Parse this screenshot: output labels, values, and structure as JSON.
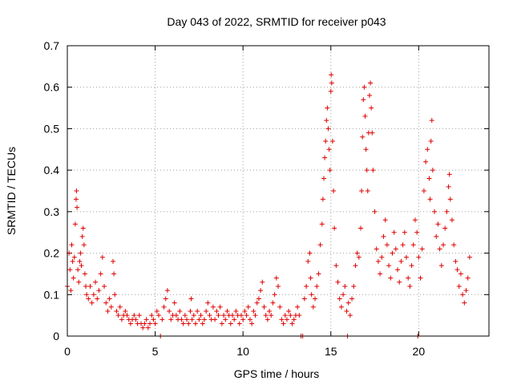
{
  "chart_data": {
    "type": "scatter",
    "title": "Day 043 of 2022, SRMTID for receiver p043",
    "xlabel": "GPS time / hours",
    "ylabel": "SRMTID / TECUs",
    "xlim": [
      0,
      24
    ],
    "ylim": [
      0,
      0.7
    ],
    "xticks": [
      0,
      5,
      10,
      15,
      20
    ],
    "yticks": [
      0,
      0.1,
      0.2,
      0.3,
      0.4,
      0.5,
      0.6,
      0.7
    ],
    "xtick_labels": [
      "0",
      "5",
      "10",
      "15",
      "20"
    ],
    "ytick_labels": [
      "0",
      "0.1",
      "0.2",
      "0.3",
      "0.4",
      "0.5",
      "0.6",
      "0.7"
    ],
    "grid": true,
    "marker": "+",
    "color": "#e00000",
    "series": [
      {
        "name": "SRMTID",
        "points": [
          [
            0.0,
            0.12
          ],
          [
            0.1,
            0.2
          ],
          [
            0.15,
            0.16
          ],
          [
            0.2,
            0.11
          ],
          [
            0.25,
            0.22
          ],
          [
            0.3,
            0.18
          ],
          [
            0.35,
            0.14
          ],
          [
            0.4,
            0.19
          ],
          [
            0.45,
            0.27
          ],
          [
            0.5,
            0.33
          ],
          [
            0.52,
            0.35
          ],
          [
            0.55,
            0.31
          ],
          [
            0.6,
            0.16
          ],
          [
            0.65,
            0.13
          ],
          [
            0.7,
            0.18
          ],
          [
            0.75,
            0.2
          ],
          [
            0.8,
            0.17
          ],
          [
            0.85,
            0.24
          ],
          [
            0.9,
            0.26
          ],
          [
            0.95,
            0.22
          ],
          [
            1.0,
            0.15
          ],
          [
            1.05,
            0.12
          ],
          [
            1.1,
            0.1
          ],
          [
            1.2,
            0.09
          ],
          [
            1.3,
            0.12
          ],
          [
            1.4,
            0.08
          ],
          [
            1.5,
            0.1
          ],
          [
            1.6,
            0.13
          ],
          [
            1.7,
            0.09
          ],
          [
            1.8,
            0.11
          ],
          [
            1.9,
            0.15
          ],
          [
            2.0,
            0.19
          ],
          [
            2.1,
            0.12
          ],
          [
            2.2,
            0.08
          ],
          [
            2.3,
            0.06
          ],
          [
            2.4,
            0.09
          ],
          [
            2.5,
            0.07
          ],
          [
            2.6,
            0.18
          ],
          [
            2.65,
            0.15
          ],
          [
            2.7,
            0.1
          ],
          [
            2.8,
            0.06
          ],
          [
            2.9,
            0.05
          ],
          [
            3.0,
            0.07
          ],
          [
            3.1,
            0.04
          ],
          [
            3.2,
            0.05
          ],
          [
            3.3,
            0.06
          ],
          [
            3.4,
            0.05
          ],
          [
            3.5,
            0.04
          ],
          [
            3.6,
            0.03
          ],
          [
            3.7,
            0.04
          ],
          [
            3.8,
            0.05
          ],
          [
            3.9,
            0.04
          ],
          [
            4.0,
            0.03
          ],
          [
            4.1,
            0.05
          ],
          [
            4.2,
            0.03
          ],
          [
            4.3,
            0.02
          ],
          [
            4.4,
            0.03
          ],
          [
            4.5,
            0.04
          ],
          [
            4.6,
            0.02
          ],
          [
            4.7,
            0.03
          ],
          [
            4.8,
            0.05
          ],
          [
            4.9,
            0.04
          ],
          [
            5.0,
            0.03
          ],
          [
            5.1,
            0.06
          ],
          [
            5.2,
            0.05
          ],
          [
            5.3,
            0.0
          ],
          [
            5.4,
            0.04
          ],
          [
            5.5,
            0.07
          ],
          [
            5.6,
            0.09
          ],
          [
            5.7,
            0.11
          ],
          [
            5.8,
            0.06
          ],
          [
            5.9,
            0.04
          ],
          [
            6.0,
            0.05
          ],
          [
            6.1,
            0.08
          ],
          [
            6.2,
            0.05
          ],
          [
            6.3,
            0.04
          ],
          [
            6.4,
            0.06
          ],
          [
            6.5,
            0.04
          ],
          [
            6.6,
            0.03
          ],
          [
            6.7,
            0.05
          ],
          [
            6.8,
            0.04
          ],
          [
            6.9,
            0.03
          ],
          [
            7.0,
            0.06
          ],
          [
            7.05,
            0.09
          ],
          [
            7.1,
            0.04
          ],
          [
            7.2,
            0.05
          ],
          [
            7.3,
            0.03
          ],
          [
            7.4,
            0.06
          ],
          [
            7.5,
            0.04
          ],
          [
            7.6,
            0.05
          ],
          [
            7.7,
            0.03
          ],
          [
            7.8,
            0.04
          ],
          [
            7.9,
            0.06
          ],
          [
            8.0,
            0.08
          ],
          [
            8.1,
            0.05
          ],
          [
            8.2,
            0.04
          ],
          [
            8.3,
            0.07
          ],
          [
            8.4,
            0.04
          ],
          [
            8.5,
            0.06
          ],
          [
            8.6,
            0.05
          ],
          [
            8.7,
            0.07
          ],
          [
            8.8,
            0.03
          ],
          [
            8.9,
            0.05
          ],
          [
            9.0,
            0.04
          ],
          [
            9.1,
            0.06
          ],
          [
            9.2,
            0.05
          ],
          [
            9.3,
            0.03
          ],
          [
            9.4,
            0.05
          ],
          [
            9.5,
            0.04
          ],
          [
            9.6,
            0.06
          ],
          [
            9.7,
            0.05
          ],
          [
            9.8,
            0.03
          ],
          [
            9.9,
            0.05
          ],
          [
            10.0,
            0.04
          ],
          [
            10.1,
            0.06
          ],
          [
            10.2,
            0.05
          ],
          [
            10.3,
            0.07
          ],
          [
            10.4,
            0.04
          ],
          [
            10.5,
            0.03
          ],
          [
            10.6,
            0.06
          ],
          [
            10.7,
            0.05
          ],
          [
            10.8,
            0.08
          ],
          [
            10.9,
            0.09
          ],
          [
            11.0,
            0.11
          ],
          [
            11.1,
            0.13
          ],
          [
            11.2,
            0.07
          ],
          [
            11.3,
            0.05
          ],
          [
            11.4,
            0.04
          ],
          [
            11.5,
            0.06
          ],
          [
            11.6,
            0.05
          ],
          [
            11.7,
            0.08
          ],
          [
            11.8,
            0.1
          ],
          [
            11.9,
            0.14
          ],
          [
            12.0,
            0.12
          ],
          [
            12.1,
            0.07
          ],
          [
            12.2,
            0.04
          ],
          [
            12.3,
            0.03
          ],
          [
            12.4,
            0.05
          ],
          [
            12.5,
            0.04
          ],
          [
            12.6,
            0.06
          ],
          [
            12.7,
            0.05
          ],
          [
            12.8,
            0.03
          ],
          [
            12.9,
            0.04
          ],
          [
            13.0,
            0.05
          ],
          [
            13.1,
            0.07
          ],
          [
            13.2,
            0.05
          ],
          [
            13.3,
            0.0
          ],
          [
            13.4,
            0.0
          ],
          [
            13.5,
            0.09
          ],
          [
            13.6,
            0.12
          ],
          [
            13.7,
            0.18
          ],
          [
            13.8,
            0.2
          ],
          [
            13.85,
            0.14
          ],
          [
            13.9,
            0.1
          ],
          [
            14.0,
            0.07
          ],
          [
            14.1,
            0.09
          ],
          [
            14.2,
            0.12
          ],
          [
            14.3,
            0.15
          ],
          [
            14.4,
            0.22
          ],
          [
            14.5,
            0.27
          ],
          [
            14.55,
            0.33
          ],
          [
            14.6,
            0.38
          ],
          [
            14.65,
            0.43
          ],
          [
            14.7,
            0.47
          ],
          [
            14.75,
            0.52
          ],
          [
            14.8,
            0.55
          ],
          [
            14.85,
            0.5
          ],
          [
            14.9,
            0.45
          ],
          [
            14.95,
            0.4
          ],
          [
            15.0,
            0.59
          ],
          [
            15.02,
            0.63
          ],
          [
            15.05,
            0.61
          ],
          [
            15.1,
            0.47
          ],
          [
            15.15,
            0.35
          ],
          [
            15.2,
            0.26
          ],
          [
            15.3,
            0.17
          ],
          [
            15.4,
            0.13
          ],
          [
            15.5,
            0.09
          ],
          [
            15.6,
            0.07
          ],
          [
            15.7,
            0.1
          ],
          [
            15.8,
            0.12
          ],
          [
            15.9,
            0.06
          ],
          [
            15.95,
            0.0
          ],
          [
            16.0,
            0.08
          ],
          [
            16.1,
            0.05
          ],
          [
            16.2,
            0.09
          ],
          [
            16.3,
            0.12
          ],
          [
            16.4,
            0.17
          ],
          [
            16.5,
            0.2
          ],
          [
            16.6,
            0.19
          ],
          [
            16.7,
            0.26
          ],
          [
            16.75,
            0.35
          ],
          [
            16.8,
            0.48
          ],
          [
            16.85,
            0.57
          ],
          [
            16.9,
            0.6
          ],
          [
            16.95,
            0.53
          ],
          [
            17.0,
            0.45
          ],
          [
            17.05,
            0.4
          ],
          [
            17.1,
            0.35
          ],
          [
            17.15,
            0.49
          ],
          [
            17.2,
            0.58
          ],
          [
            17.25,
            0.61
          ],
          [
            17.3,
            0.55
          ],
          [
            17.35,
            0.49
          ],
          [
            17.4,
            0.4
          ],
          [
            17.5,
            0.3
          ],
          [
            17.6,
            0.21
          ],
          [
            17.7,
            0.18
          ],
          [
            17.8,
            0.15
          ],
          [
            17.9,
            0.19
          ],
          [
            18.0,
            0.24
          ],
          [
            18.1,
            0.28
          ],
          [
            18.2,
            0.22
          ],
          [
            18.3,
            0.17
          ],
          [
            18.4,
            0.14
          ],
          [
            18.5,
            0.2
          ],
          [
            18.6,
            0.25
          ],
          [
            18.7,
            0.21
          ],
          [
            18.8,
            0.16
          ],
          [
            18.9,
            0.13
          ],
          [
            19.0,
            0.18
          ],
          [
            19.1,
            0.22
          ],
          [
            19.2,
            0.25
          ],
          [
            19.3,
            0.19
          ],
          [
            19.4,
            0.14
          ],
          [
            19.5,
            0.12
          ],
          [
            19.6,
            0.17
          ],
          [
            19.7,
            0.22
          ],
          [
            19.8,
            0.28
          ],
          [
            19.9,
            0.25
          ],
          [
            19.95,
            0.0
          ],
          [
            20.0,
            0.19
          ],
          [
            20.1,
            0.14
          ],
          [
            20.2,
            0.21
          ],
          [
            20.3,
            0.35
          ],
          [
            20.4,
            0.42
          ],
          [
            20.5,
            0.45
          ],
          [
            20.6,
            0.38
          ],
          [
            20.65,
            0.33
          ],
          [
            20.7,
            0.47
          ],
          [
            20.75,
            0.52
          ],
          [
            20.8,
            0.4
          ],
          [
            20.9,
            0.3
          ],
          [
            21.0,
            0.24
          ],
          [
            21.1,
            0.27
          ],
          [
            21.2,
            0.21
          ],
          [
            21.3,
            0.17
          ],
          [
            21.4,
            0.22
          ],
          [
            21.5,
            0.26
          ],
          [
            21.6,
            0.3
          ],
          [
            21.7,
            0.36
          ],
          [
            21.75,
            0.39
          ],
          [
            21.8,
            0.33
          ],
          [
            21.9,
            0.28
          ],
          [
            22.0,
            0.22
          ],
          [
            22.1,
            0.18
          ],
          [
            22.2,
            0.16
          ],
          [
            22.3,
            0.12
          ],
          [
            22.4,
            0.15
          ],
          [
            22.5,
            0.1
          ],
          [
            22.6,
            0.08
          ],
          [
            22.7,
            0.11
          ],
          [
            22.8,
            0.14
          ],
          [
            22.9,
            0.19
          ]
        ]
      }
    ]
  }
}
